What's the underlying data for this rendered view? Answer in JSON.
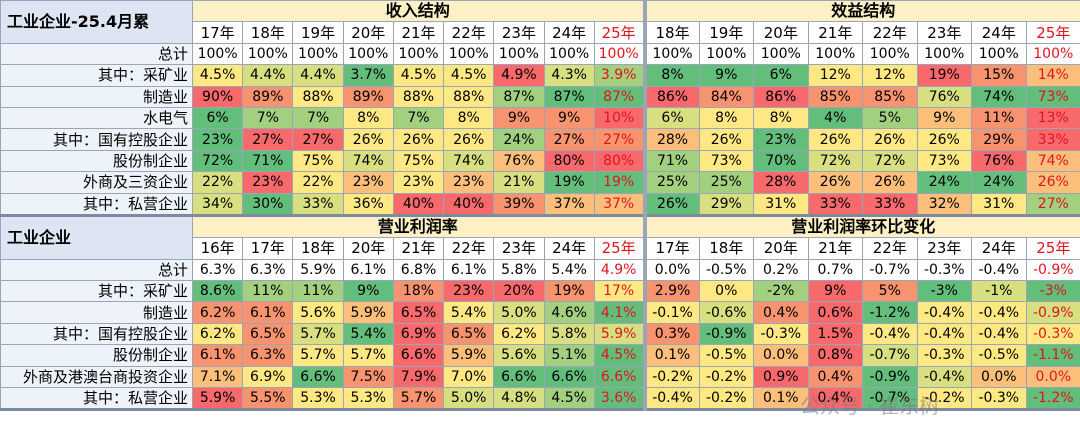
{
  "sections": [
    {
      "title": "工业企业-25.4月累",
      "groups": [
        {
          "name": "收入结构",
          "columns": [
            "17年",
            "18年",
            "19年",
            "20年",
            "21年",
            "22年",
            "23年",
            "24年",
            "25年"
          ]
        },
        {
          "name": "效益结构",
          "columns": [
            "18年",
            "19年",
            "20年",
            "21年",
            "22年",
            "23年",
            "24年",
            "25年"
          ]
        }
      ],
      "rows": [
        {
          "label": "总计",
          "cells": [
            "100%",
            "100%",
            "100%",
            "100%",
            "100%",
            "100%",
            "100%",
            "100%",
            "100%",
            "100%",
            "100%",
            "100%",
            "100%",
            "100%",
            "100%",
            "100%",
            "100%"
          ],
          "colors": [
            "#ffffff",
            "#ffffff",
            "#ffffff",
            "#ffffff",
            "#ffffff",
            "#ffffff",
            "#ffffff",
            "#ffffff",
            "#ffffff",
            "#ffffff",
            "#ffffff",
            "#ffffff",
            "#ffffff",
            "#ffffff",
            "#ffffff",
            "#ffffff",
            "#ffffff"
          ]
        },
        {
          "label": "其中：采矿业",
          "cells": [
            "4.5%",
            "4.4%",
            "4.4%",
            "3.7%",
            "4.5%",
            "4.5%",
            "4.9%",
            "4.3%",
            "3.9%",
            "8%",
            "9%",
            "6%",
            "12%",
            "12%",
            "19%",
            "15%",
            "14%"
          ],
          "colors": [
            "#fee883",
            "#d7df81",
            "#d7df81",
            "#63be7b",
            "#fee883",
            "#fee883",
            "#f8696b",
            "#d7df81",
            "#a2d07f",
            "#63be7b",
            "#63be7b",
            "#63be7b",
            "#fee883",
            "#fee883",
            "#f8696b",
            "#f8936f",
            "#fcbf7b"
          ]
        },
        {
          "label": "制造业",
          "cells": [
            "90%",
            "89%",
            "88%",
            "89%",
            "88%",
            "88%",
            "87%",
            "87%",
            "87%",
            "86%",
            "84%",
            "86%",
            "85%",
            "85%",
            "76%",
            "74%",
            "73%"
          ],
          "colors": [
            "#f8696b",
            "#f8936f",
            "#fee883",
            "#f8936f",
            "#fee883",
            "#fee883",
            "#a2d07f",
            "#63be7b",
            "#63be7b",
            "#f8696b",
            "#f8936f",
            "#f8696b",
            "#f8936f",
            "#f8936f",
            "#d7df81",
            "#63be7b",
            "#63be7b"
          ]
        },
        {
          "label": "水电气",
          "cells": [
            "6%",
            "7%",
            "7%",
            "8%",
            "7%",
            "8%",
            "9%",
            "9%",
            "10%",
            "6%",
            "8%",
            "8%",
            "4%",
            "5%",
            "9%",
            "11%",
            "13%"
          ],
          "colors": [
            "#63be7b",
            "#a2d07f",
            "#a2d07f",
            "#fee883",
            "#a2d07f",
            "#fee883",
            "#f8936f",
            "#f8936f",
            "#f8696b",
            "#d7df81",
            "#fee883",
            "#fee883",
            "#63be7b",
            "#a2d07f",
            "#fcbf7b",
            "#f8936f",
            "#f8696b"
          ]
        },
        {
          "label": "其中：国有控股企业",
          "cells": [
            "23%",
            "27%",
            "27%",
            "26%",
            "26%",
            "26%",
            "24%",
            "27%",
            "27%",
            "28%",
            "26%",
            "23%",
            "26%",
            "26%",
            "26%",
            "29%",
            "33%"
          ],
          "colors": [
            "#63be7b",
            "#f8696b",
            "#f8696b",
            "#fee883",
            "#fee883",
            "#fee883",
            "#a2d07f",
            "#f8936f",
            "#f8936f",
            "#fcbf7b",
            "#fee883",
            "#63be7b",
            "#fee883",
            "#fee883",
            "#fee883",
            "#f8936f",
            "#f8696b"
          ]
        },
        {
          "label": "股份制企业",
          "cells": [
            "72%",
            "71%",
            "75%",
            "74%",
            "75%",
            "74%",
            "76%",
            "80%",
            "80%",
            "71%",
            "73%",
            "70%",
            "72%",
            "72%",
            "73%",
            "76%",
            "74%"
          ],
          "colors": [
            "#63be7b",
            "#63be7b",
            "#fee883",
            "#d7df81",
            "#fee883",
            "#d7df81",
            "#fcbf7b",
            "#f8696b",
            "#f8696b",
            "#a2d07f",
            "#fee883",
            "#63be7b",
            "#d7df81",
            "#d7df81",
            "#fee883",
            "#f8696b",
            "#fcbf7b"
          ]
        },
        {
          "label": "外商及三资企业",
          "cells": [
            "22%",
            "23%",
            "22%",
            "23%",
            "23%",
            "23%",
            "21%",
            "19%",
            "19%",
            "25%",
            "25%",
            "28%",
            "26%",
            "26%",
            "24%",
            "24%",
            "26%"
          ],
          "colors": [
            "#d7df81",
            "#f8696b",
            "#fee883",
            "#fcbf7b",
            "#fee883",
            "#fcbf7b",
            "#d7df81",
            "#63be7b",
            "#63be7b",
            "#a2d07f",
            "#a2d07f",
            "#f8696b",
            "#fcbf7b",
            "#fcbf7b",
            "#63be7b",
            "#63be7b",
            "#fcbf7b"
          ]
        },
        {
          "label": "其中：私营企业",
          "cells": [
            "34%",
            "30%",
            "33%",
            "36%",
            "40%",
            "40%",
            "39%",
            "37%",
            "37%",
            "26%",
            "29%",
            "31%",
            "33%",
            "33%",
            "32%",
            "31%",
            "27%"
          ],
          "colors": [
            "#d7df81",
            "#63be7b",
            "#d7df81",
            "#fee883",
            "#f8696b",
            "#f8696b",
            "#f8936f",
            "#fcbf7b",
            "#fcbf7b",
            "#63be7b",
            "#d7df81",
            "#fee883",
            "#f8696b",
            "#f8696b",
            "#fcbf7b",
            "#fee883",
            "#a2d07f"
          ]
        }
      ]
    },
    {
      "title": "工业企业",
      "groups": [
        {
          "name": "营业利润率",
          "columns": [
            "16年",
            "17年",
            "18年",
            "20年",
            "21年",
            "22年",
            "23年",
            "24年",
            "25年"
          ]
        },
        {
          "name": "营业利润率环比变化",
          "columns": [
            "17年",
            "18年",
            "20年",
            "21年",
            "22年",
            "23年",
            "24年",
            "25年"
          ]
        }
      ],
      "rows": [
        {
          "label": "总计",
          "cells": [
            "6.3%",
            "6.3%",
            "5.9%",
            "6.1%",
            "6.8%",
            "6.1%",
            "5.8%",
            "5.4%",
            "4.9%",
            "0.0%",
            "-0.5%",
            "0.2%",
            "0.7%",
            "-0.7%",
            "-0.3%",
            "-0.4%",
            "-0.9%"
          ],
          "colors": [
            "#ffffff",
            "#ffffff",
            "#ffffff",
            "#ffffff",
            "#ffffff",
            "#ffffff",
            "#ffffff",
            "#ffffff",
            "#ffffff",
            "#ffffff",
            "#ffffff",
            "#ffffff",
            "#ffffff",
            "#ffffff",
            "#ffffff",
            "#ffffff",
            "#ffffff"
          ]
        },
        {
          "label": "其中：采矿业",
          "cells": [
            "8.6%",
            "11%",
            "11%",
            "9%",
            "18%",
            "23%",
            "20%",
            "19%",
            "17%",
            "2.9%",
            "0%",
            "-2%",
            "9%",
            "5%",
            "-3%",
            "-1%",
            "-3%"
          ],
          "colors": [
            "#63be7b",
            "#a2d07f",
            "#a2d07f",
            "#63be7b",
            "#f8936f",
            "#f8696b",
            "#f8696b",
            "#f8936f",
            "#fee883",
            "#f8936f",
            "#fee883",
            "#a2d07f",
            "#f8696b",
            "#f8936f",
            "#63be7b",
            "#d7df81",
            "#63be7b"
          ]
        },
        {
          "label": "制造业",
          "cells": [
            "6.2%",
            "6.1%",
            "5.6%",
            "5.9%",
            "6.5%",
            "5.4%",
            "5.0%",
            "4.6%",
            "4.1%",
            "-0.1%",
            "-0.6%",
            "0.4%",
            "0.6%",
            "-1.2%",
            "-0.4%",
            "-0.4%",
            "-0.9%"
          ],
          "colors": [
            "#f8936f",
            "#f8936f",
            "#fee883",
            "#fcbf7b",
            "#f8696b",
            "#fee883",
            "#d7df81",
            "#a2d07f",
            "#63be7b",
            "#fee883",
            "#d7df81",
            "#f8936f",
            "#f8696b",
            "#63be7b",
            "#fee883",
            "#fee883",
            "#d7df81"
          ]
        },
        {
          "label": "其中：国有控股企业",
          "cells": [
            "6.2%",
            "6.5%",
            "5.7%",
            "5.4%",
            "6.9%",
            "6.5%",
            "6.2%",
            "5.8%",
            "5.9%",
            "0.3%",
            "-0.9%",
            "-0.3%",
            "1.5%",
            "-0.4%",
            "-0.4%",
            "-0.4%",
            "-0.3%"
          ],
          "colors": [
            "#fee883",
            "#f8936f",
            "#d7df81",
            "#63be7b",
            "#f8696b",
            "#f8936f",
            "#fee883",
            "#d7df81",
            "#d7df81",
            "#f8936f",
            "#63be7b",
            "#fee883",
            "#f8696b",
            "#fee883",
            "#fee883",
            "#fee883",
            "#fee883"
          ]
        },
        {
          "label": "股份制企业",
          "cells": [
            "6.1%",
            "6.3%",
            "5.7%",
            "5.7%",
            "6.6%",
            "5.9%",
            "5.6%",
            "5.1%",
            "4.5%",
            "0.1%",
            "-0.5%",
            "0.0%",
            "0.8%",
            "-0.7%",
            "-0.3%",
            "-0.5%",
            "-1.1%"
          ],
          "colors": [
            "#f8936f",
            "#f8936f",
            "#fee883",
            "#fee883",
            "#f8696b",
            "#fcbf7b",
            "#d7df81",
            "#a2d07f",
            "#63be7b",
            "#fcbf7b",
            "#fee883",
            "#fcbf7b",
            "#f8696b",
            "#d7df81",
            "#fee883",
            "#fee883",
            "#63be7b"
          ]
        },
        {
          "label": "外商及港澳台商投资企业",
          "cells": [
            "7.1%",
            "6.9%",
            "6.6%",
            "7.5%",
            "7.9%",
            "7.0%",
            "6.6%",
            "6.6%",
            "6.6%",
            "-0.2%",
            "-0.2%",
            "0.9%",
            "0.4%",
            "-0.9%",
            "-0.4%",
            "0.0%",
            "0.0%"
          ],
          "colors": [
            "#fcbf7b",
            "#fee883",
            "#63be7b",
            "#f8936f",
            "#f8696b",
            "#fee883",
            "#63be7b",
            "#63be7b",
            "#63be7b",
            "#fee883",
            "#fee883",
            "#f8696b",
            "#f8936f",
            "#63be7b",
            "#d7df81",
            "#fcbf7b",
            "#fcbf7b"
          ]
        },
        {
          "label": "其中：私营企业",
          "cells": [
            "5.9%",
            "5.5%",
            "5.3%",
            "5.3%",
            "5.7%",
            "5.0%",
            "4.8%",
            "4.5%",
            "3.6%",
            "-0.4%",
            "-0.2%",
            "0.1%",
            "0.4%",
            "-0.7%",
            "-0.2%",
            "-0.3%",
            "-1.2%"
          ],
          "colors": [
            "#f8696b",
            "#f8936f",
            "#fee883",
            "#fee883",
            "#f8936f",
            "#d7df81",
            "#d7df81",
            "#a2d07f",
            "#63be7b",
            "#fee883",
            "#fee883",
            "#fcbf7b",
            "#f8696b",
            "#63be7b",
            "#fee883",
            "#fee883",
            "#63be7b"
          ]
        }
      ]
    }
  ],
  "watermark": "公众号 · 崔东树"
}
